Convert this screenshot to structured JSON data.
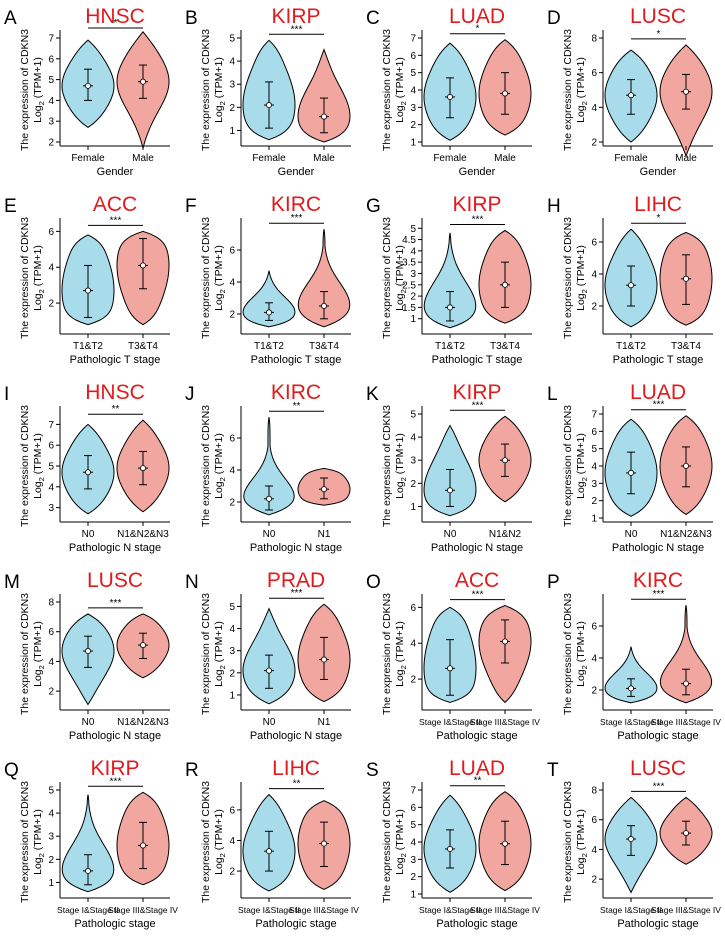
{
  "ylabel_line1": "The expression of CDKN3",
  "ylabel_line2": "Log",
  "ylabel_sub": "2",
  "ylabel_tail": " (TPM+1)",
  "colors": {
    "group1": "#a9dcea",
    "group2": "#f2a6a0",
    "title": "#e31a1c"
  },
  "chart_data": [
    {
      "letter": "A",
      "title": "HNSC",
      "type": "violin",
      "ylim": [
        2,
        7
      ],
      "yticks": [
        2,
        3,
        4,
        5,
        6,
        7
      ],
      "sig": "*",
      "xlabel": "Gender",
      "categories": [
        "Female",
        "Male"
      ],
      "groups": [
        {
          "min": 2.7,
          "max": 6.9,
          "q1": 4.0,
          "median": 4.7,
          "q3": 5.5
        },
        {
          "min": 1.7,
          "max": 7.3,
          "q1": 4.1,
          "median": 4.9,
          "q3": 5.7
        }
      ]
    },
    {
      "letter": "B",
      "title": "KIRP",
      "type": "violin",
      "ylim": [
        0.5,
        5
      ],
      "yticks": [
        1,
        2,
        3,
        4,
        5
      ],
      "sig": "***",
      "xlabel": "Gender",
      "categories": [
        "Female",
        "Male"
      ],
      "groups": [
        {
          "min": 0.6,
          "max": 4.9,
          "q1": 1.1,
          "median": 2.1,
          "q3": 3.1
        },
        {
          "min": 0.5,
          "max": 4.5,
          "q1": 0.9,
          "median": 1.6,
          "q3": 2.4
        }
      ]
    },
    {
      "letter": "C",
      "title": "LUAD",
      "type": "violin",
      "ylim": [
        1,
        7
      ],
      "yticks": [
        1,
        2,
        3,
        4,
        5,
        6,
        7
      ],
      "sig": "*",
      "xlabel": "Gender",
      "categories": [
        "Female",
        "Male"
      ],
      "groups": [
        {
          "min": 1.1,
          "max": 6.7,
          "q1": 2.4,
          "median": 3.6,
          "q3": 4.7
        },
        {
          "min": 1.4,
          "max": 6.9,
          "q1": 2.6,
          "median": 3.8,
          "q3": 5.0
        }
      ]
    },
    {
      "letter": "D",
      "title": "LUSC",
      "type": "violin",
      "ylim": [
        2,
        8
      ],
      "yticks": [
        2,
        4,
        6,
        8
      ],
      "sig": "*",
      "xlabel": "Gender",
      "categories": [
        "Female",
        "Male"
      ],
      "groups": [
        {
          "min": 2.0,
          "max": 7.3,
          "q1": 3.6,
          "median": 4.7,
          "q3": 5.6
        },
        {
          "min": 1.2,
          "max": 7.6,
          "q1": 3.9,
          "median": 4.9,
          "q3": 5.9
        }
      ]
    },
    {
      "letter": "E",
      "title": "ACC",
      "type": "violin",
      "ylim": [
        0.5,
        6.3
      ],
      "yticks": [
        2,
        4,
        6
      ],
      "sig": "***",
      "xlabel": "Pathologic T stage",
      "categories": [
        "T1&T2",
        "T3&T4"
      ],
      "groups": [
        {
          "min": 0.8,
          "max": 5.8,
          "q1": 1.2,
          "median": 2.7,
          "q3": 4.1
        },
        {
          "min": 0.8,
          "max": 6.0,
          "q1": 2.8,
          "median": 4.1,
          "q3": 5.6
        }
      ]
    },
    {
      "letter": "F",
      "title": "KIRC",
      "type": "violin",
      "ylim": [
        1,
        7.5
      ],
      "yticks": [
        2,
        4,
        6
      ],
      "sig": "***",
      "xlabel": "Pathologic T stage",
      "categories": [
        "T1&T2",
        "T3&T4"
      ],
      "groups": [
        {
          "min": 1.2,
          "max": 4.7,
          "q1": 1.6,
          "median": 2.1,
          "q3": 2.7
        },
        {
          "min": 1.2,
          "max": 7.3,
          "q1": 1.7,
          "median": 2.5,
          "q3": 3.4
        }
      ]
    },
    {
      "letter": "G",
      "title": "KIRP",
      "type": "violin",
      "ylim": [
        0.5,
        5.1
      ],
      "yticks": [
        1,
        1.5,
        2,
        2.5,
        3,
        3.5,
        4,
        4.5,
        5
      ],
      "sig": "***",
      "xlabel": "Pathologic T stage",
      "categories": [
        "T1&T2",
        "T3&T4"
      ],
      "groups": [
        {
          "min": 0.6,
          "max": 4.8,
          "q1": 0.9,
          "median": 1.5,
          "q3": 2.2
        },
        {
          "min": 0.8,
          "max": 4.9,
          "q1": 1.5,
          "median": 2.5,
          "q3": 3.5
        }
      ]
    },
    {
      "letter": "H",
      "title": "LIHC",
      "type": "violin",
      "ylim": [
        0.5,
        7
      ],
      "yticks": [
        2,
        4,
        6
      ],
      "sig": "*",
      "xlabel": "Pathologic T stage",
      "categories": [
        "T1&T2",
        "T3&T4"
      ],
      "groups": [
        {
          "min": 0.7,
          "max": 6.8,
          "q1": 2.0,
          "median": 3.3,
          "q3": 4.5
        },
        {
          "min": 0.8,
          "max": 6.6,
          "q1": 2.1,
          "median": 3.7,
          "q3": 5.2
        }
      ]
    },
    {
      "letter": "I",
      "title": "HNSC",
      "type": "violin",
      "ylim": [
        2.5,
        7.5
      ],
      "yticks": [
        3,
        4,
        5,
        6,
        7
      ],
      "sig": "**",
      "xlabel": "Pathologic N stage",
      "categories": [
        "N0",
        "N1&N2&N3"
      ],
      "groups": [
        {
          "min": 2.7,
          "max": 7.0,
          "q1": 3.9,
          "median": 4.7,
          "q3": 5.5
        },
        {
          "min": 2.8,
          "max": 7.2,
          "q1": 4.1,
          "median": 4.9,
          "q3": 5.7
        }
      ]
    },
    {
      "letter": "J",
      "title": "KIRC",
      "type": "violin",
      "ylim": [
        1,
        7.5
      ],
      "yticks": [
        2,
        4,
        6
      ],
      "sig": "**",
      "xlabel": "Pathologic N stage",
      "categories": [
        "N0",
        "N1"
      ],
      "groups": [
        {
          "min": 1.2,
          "max": 7.3,
          "q1": 1.5,
          "median": 2.2,
          "q3": 3.0
        },
        {
          "min": 1.8,
          "max": 4.1,
          "q1": 2.2,
          "median": 2.8,
          "q3": 3.5
        }
      ]
    },
    {
      "letter": "K",
      "title": "KIRP",
      "type": "violin",
      "ylim": [
        0.5,
        5
      ],
      "yticks": [
        1,
        2,
        3,
        4,
        5
      ],
      "sig": "***",
      "xlabel": "Pathologic N stage",
      "categories": [
        "N0",
        "N1&N2"
      ],
      "groups": [
        {
          "min": 0.6,
          "max": 4.5,
          "q1": 1.0,
          "median": 1.7,
          "q3": 2.6
        },
        {
          "min": 1.2,
          "max": 4.9,
          "q1": 2.3,
          "median": 3.0,
          "q3": 3.7
        }
      ]
    },
    {
      "letter": "L",
      "title": "LUAD",
      "type": "violin",
      "ylim": [
        1,
        7
      ],
      "yticks": [
        1,
        2,
        3,
        4,
        5,
        6,
        7
      ],
      "sig": "***",
      "xlabel": "Pathologic N stage",
      "categories": [
        "N0",
        "N1&N2&N3"
      ],
      "groups": [
        {
          "min": 1.1,
          "max": 6.7,
          "q1": 2.4,
          "median": 3.6,
          "q3": 4.8
        },
        {
          "min": 1.2,
          "max": 6.9,
          "q1": 2.8,
          "median": 4.0,
          "q3": 5.1
        }
      ]
    },
    {
      "letter": "M",
      "title": "LUSC",
      "type": "violin",
      "ylim": [
        1,
        8
      ],
      "yticks": [
        2,
        4,
        6,
        8
      ],
      "sig": "***",
      "xlabel": "Pathologic N stage",
      "categories": [
        "N0",
        "N1&N2&N3"
      ],
      "groups": [
        {
          "min": 1.1,
          "max": 7.2,
          "q1": 3.6,
          "median": 4.7,
          "q3": 5.7
        },
        {
          "min": 2.9,
          "max": 7.2,
          "q1": 4.2,
          "median": 5.1,
          "q3": 5.9
        }
      ]
    },
    {
      "letter": "N",
      "title": "PRAD",
      "type": "violin",
      "ylim": [
        0.5,
        5.2
      ],
      "yticks": [
        1,
        2,
        3,
        4,
        5
      ],
      "sig": "***",
      "xlabel": "Pathologic N stage",
      "categories": [
        "N0",
        "N1"
      ],
      "groups": [
        {
          "min": 0.6,
          "max": 4.9,
          "q1": 1.3,
          "median": 2.1,
          "q3": 2.8
        },
        {
          "min": 0.7,
          "max": 5.1,
          "q1": 1.7,
          "median": 2.6,
          "q3": 3.6
        }
      ]
    },
    {
      "letter": "O",
      "title": "ACC",
      "type": "violin",
      "ylim": [
        0.5,
        6.3
      ],
      "yticks": [
        2,
        4,
        6
      ],
      "sig": "***",
      "xlabel": "Pathologic stage",
      "categories": [
        "Stage I&Stage II",
        "Stage III&Stage IV"
      ],
      "groups": [
        {
          "min": 0.7,
          "max": 6.0,
          "q1": 1.1,
          "median": 2.6,
          "q3": 4.2
        },
        {
          "min": 0.7,
          "max": 6.1,
          "q1": 2.9,
          "median": 4.1,
          "q3": 5.3
        }
      ]
    },
    {
      "letter": "P",
      "title": "KIRC",
      "type": "violin",
      "ylim": [
        1,
        7.5
      ],
      "yticks": [
        2,
        4,
        6
      ],
      "sig": "***",
      "xlabel": "Pathologic stage",
      "categories": [
        "Stage I&Stage II",
        "Stage III&Stage IV"
      ],
      "groups": [
        {
          "min": 1.2,
          "max": 4.7,
          "q1": 1.6,
          "median": 2.1,
          "q3": 2.7
        },
        {
          "min": 1.2,
          "max": 7.3,
          "q1": 1.7,
          "median": 2.4,
          "q3": 3.3
        }
      ]
    },
    {
      "letter": "Q",
      "title": "KIRP",
      "type": "violin",
      "ylim": [
        0.5,
        5
      ],
      "yticks": [
        1,
        2,
        3,
        4,
        5
      ],
      "sig": "***",
      "xlabel": "Pathologic stage",
      "categories": [
        "Stage I&Stage II",
        "Stage III&Stage IV"
      ],
      "groups": [
        {
          "min": 0.6,
          "max": 4.8,
          "q1": 0.9,
          "median": 1.5,
          "q3": 2.2
        },
        {
          "min": 0.9,
          "max": 4.9,
          "q1": 1.6,
          "median": 2.6,
          "q3": 3.6
        }
      ]
    },
    {
      "letter": "R",
      "title": "LIHC",
      "type": "violin",
      "ylim": [
        0.5,
        7.3
      ],
      "yticks": [
        2,
        4,
        6
      ],
      "sig": "**",
      "xlabel": "Pathologic stage",
      "categories": [
        "Stage I&Stage II",
        "Stage III&Stage IV"
      ],
      "groups": [
        {
          "min": 0.7,
          "max": 7.0,
          "q1": 2.0,
          "median": 3.3,
          "q3": 4.6
        },
        {
          "min": 0.8,
          "max": 6.6,
          "q1": 2.3,
          "median": 3.8,
          "q3": 5.2
        }
      ]
    },
    {
      "letter": "S",
      "title": "LUAD",
      "type": "violin",
      "ylim": [
        1,
        7
      ],
      "yticks": [
        1,
        2,
        3,
        4,
        5,
        6,
        7
      ],
      "sig": "**",
      "xlabel": "Pathologic stage",
      "categories": [
        "Stage I&Stage II",
        "Stage III&Stage IV"
      ],
      "groups": [
        {
          "min": 1.1,
          "max": 6.7,
          "q1": 2.5,
          "median": 3.6,
          "q3": 4.7
        },
        {
          "min": 1.2,
          "max": 6.9,
          "q1": 2.7,
          "median": 3.9,
          "q3": 5.2
        }
      ]
    },
    {
      "letter": "T",
      "title": "LUSC",
      "type": "violin",
      "ylim": [
        1,
        8
      ],
      "yticks": [
        2,
        4,
        6,
        8
      ],
      "sig": "***",
      "xlabel": "Pathologic stage",
      "categories": [
        "Stage I&Stage II",
        "Stage III&Stage IV"
      ],
      "groups": [
        {
          "min": 1.1,
          "max": 7.5,
          "q1": 3.6,
          "median": 4.7,
          "q3": 5.6
        },
        {
          "min": 3.0,
          "max": 7.5,
          "q1": 4.3,
          "median": 5.1,
          "q3": 5.9
        }
      ]
    }
  ]
}
